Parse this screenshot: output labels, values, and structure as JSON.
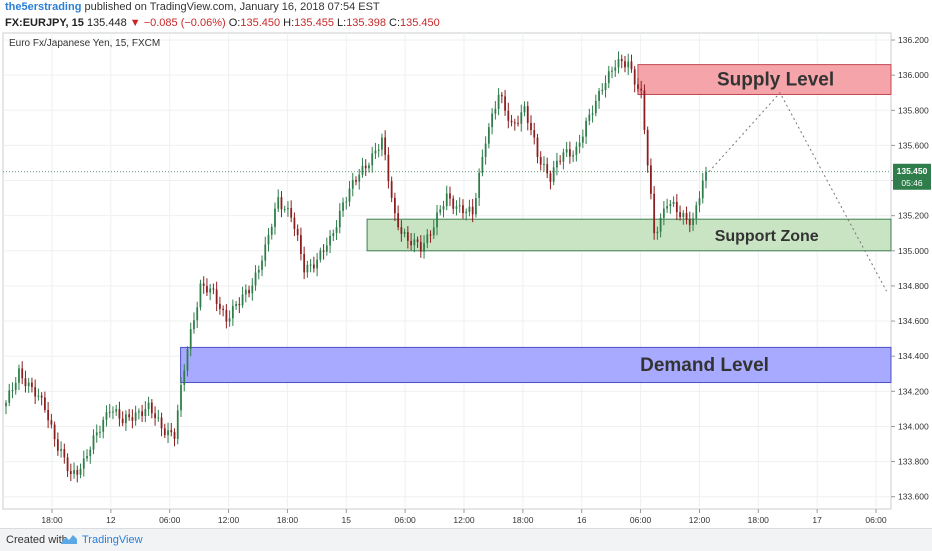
{
  "header": {
    "username": "the5erstrading",
    "published_text": "published on TradingView.com, January 16, 2018 07:54 EST"
  },
  "quote": {
    "symbol": "FX:EURJPY, 15",
    "last": "135.448",
    "change": "▼ −0.085 (−0.06%)",
    "o_label": "O:",
    "o": "135.450",
    "h_label": "H:",
    "h": "135.455",
    "l_label": "L:",
    "l": "135.398",
    "c_label": "C:",
    "c": "135.450"
  },
  "chart_data": {
    "type": "candlestick",
    "title": "Euro Fx/Japanese Yen, 15, FXCM",
    "ylim": [
      133.53,
      136.24
    ],
    "y_ticks": [
      "133.600",
      "133.800",
      "134.000",
      "134.200",
      "134.400",
      "134.600",
      "134.800",
      "135.000",
      "135.200",
      "135.400",
      "135.600",
      "135.800",
      "136.000",
      "136.200"
    ],
    "x_ticks": [
      "18:00",
      "12",
      "06:00",
      "12:00",
      "18:00",
      "15",
      "06:00",
      "12:00",
      "18:00",
      "16",
      "06:00",
      "12:00",
      "18:00",
      "17",
      "06:00"
    ],
    "last_price_label": "135.450",
    "countdown_label": "05:46",
    "colors": {
      "up": "#2e7d4a",
      "down": "#8b1e1e"
    },
    "zones": [
      {
        "label": "Supply Level",
        "top": 136.06,
        "bottom": 135.89,
        "fill": "#f4a0a4",
        "stroke": "#c4454f",
        "start_frac": 0.715
      },
      {
        "label": "Support Zone",
        "top": 135.18,
        "bottom": 135.0,
        "fill": "#c5e3bf",
        "stroke": "#3e7d52",
        "start_frac": 0.41
      },
      {
        "label": "Demand Level",
        "top": 134.45,
        "bottom": 134.25,
        "fill": "#a3a5ff",
        "stroke": "#4b4fc6",
        "start_frac": 0.2
      }
    ],
    "projection": [
      {
        "x_frac": 0.795,
        "y": 135.45
      },
      {
        "x_frac": 0.875,
        "y": 135.9
      },
      {
        "x_frac": 0.995,
        "y": 134.77
      }
    ],
    "path_closes": [
      134.12,
      134.32,
      134.2,
      134.12,
      133.88,
      133.72,
      133.8,
      133.95,
      134.12,
      134.02,
      134.08,
      134.1,
      134.0,
      133.95,
      134.45,
      134.8,
      134.75,
      134.62,
      134.7,
      134.82,
      135.0,
      135.3,
      135.2,
      134.9,
      134.95,
      135.05,
      135.28,
      135.4,
      135.52,
      135.62,
      135.2,
      135.05,
      135.02,
      135.15,
      135.3,
      135.25,
      135.2,
      135.65,
      135.88,
      135.72,
      135.8,
      135.55,
      135.42,
      135.55,
      135.58,
      135.75,
      135.95,
      136.05,
      136.08,
      135.88,
      135.1,
      135.28,
      135.2,
      135.18,
      135.45
    ],
    "current_close": 135.45
  },
  "footer": {
    "created_with": "Created with",
    "brand": "TradingView"
  }
}
